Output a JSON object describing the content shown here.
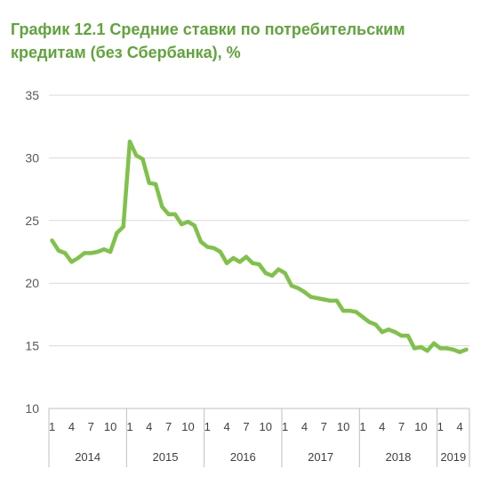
{
  "chart_data": {
    "type": "line",
    "title": "График 12.1 Средние ставки по потребительским кредитам (без Сбербанка), %",
    "xlabel": "",
    "ylabel": "",
    "ylim": [
      10,
      35
    ],
    "yticks": [
      "10",
      "15",
      "20",
      "25",
      "30",
      "35"
    ],
    "grid": "horizontal",
    "legend": "none",
    "line_color": "#7fc24a",
    "title_color": "#5ea639",
    "month_ticks": [
      "1",
      "4",
      "7",
      "10"
    ],
    "years": [
      "2014",
      "2015",
      "2016",
      "2017",
      "2018",
      "2019"
    ],
    "months_per_year": [
      12,
      12,
      12,
      12,
      12,
      5
    ],
    "x": [
      "2014-01",
      "2014-02",
      "2014-03",
      "2014-04",
      "2014-05",
      "2014-06",
      "2014-07",
      "2014-08",
      "2014-09",
      "2014-10",
      "2014-11",
      "2014-12",
      "2015-01",
      "2015-02",
      "2015-03",
      "2015-04",
      "2015-05",
      "2015-06",
      "2015-07",
      "2015-08",
      "2015-09",
      "2015-10",
      "2015-11",
      "2015-12",
      "2016-01",
      "2016-02",
      "2016-03",
      "2016-04",
      "2016-05",
      "2016-06",
      "2016-07",
      "2016-08",
      "2016-09",
      "2016-10",
      "2016-11",
      "2016-12",
      "2017-01",
      "2017-02",
      "2017-03",
      "2017-04",
      "2017-05",
      "2017-06",
      "2017-07",
      "2017-08",
      "2017-09",
      "2017-10",
      "2017-11",
      "2017-12",
      "2018-01",
      "2018-02",
      "2018-03",
      "2018-04",
      "2018-05",
      "2018-06",
      "2018-07",
      "2018-08",
      "2018-09",
      "2018-10",
      "2018-11",
      "2018-12",
      "2019-01",
      "2019-02",
      "2019-03",
      "2019-04",
      "2019-05"
    ],
    "series": [
      {
        "values": [
          23.4,
          22.6,
          22.4,
          21.7,
          22.0,
          22.4,
          22.4,
          22.5,
          22.7,
          22.5,
          24.0,
          24.5,
          31.3,
          30.2,
          29.9,
          28.0,
          27.9,
          26.1,
          25.5,
          25.5,
          24.7,
          24.9,
          24.6,
          23.3,
          22.9,
          22.8,
          22.5,
          21.6,
          22.0,
          21.7,
          22.1,
          21.6,
          21.5,
          20.8,
          20.6,
          21.1,
          20.8,
          19.8,
          19.6,
          19.3,
          18.9,
          18.8,
          18.7,
          18.6,
          18.6,
          17.8,
          17.8,
          17.7,
          17.3,
          16.9,
          16.7,
          16.1,
          16.3,
          16.1,
          15.8,
          15.8,
          14.8,
          14.9,
          14.6,
          15.2,
          14.8,
          14.8,
          14.7,
          14.5,
          14.7
        ]
      }
    ]
  }
}
